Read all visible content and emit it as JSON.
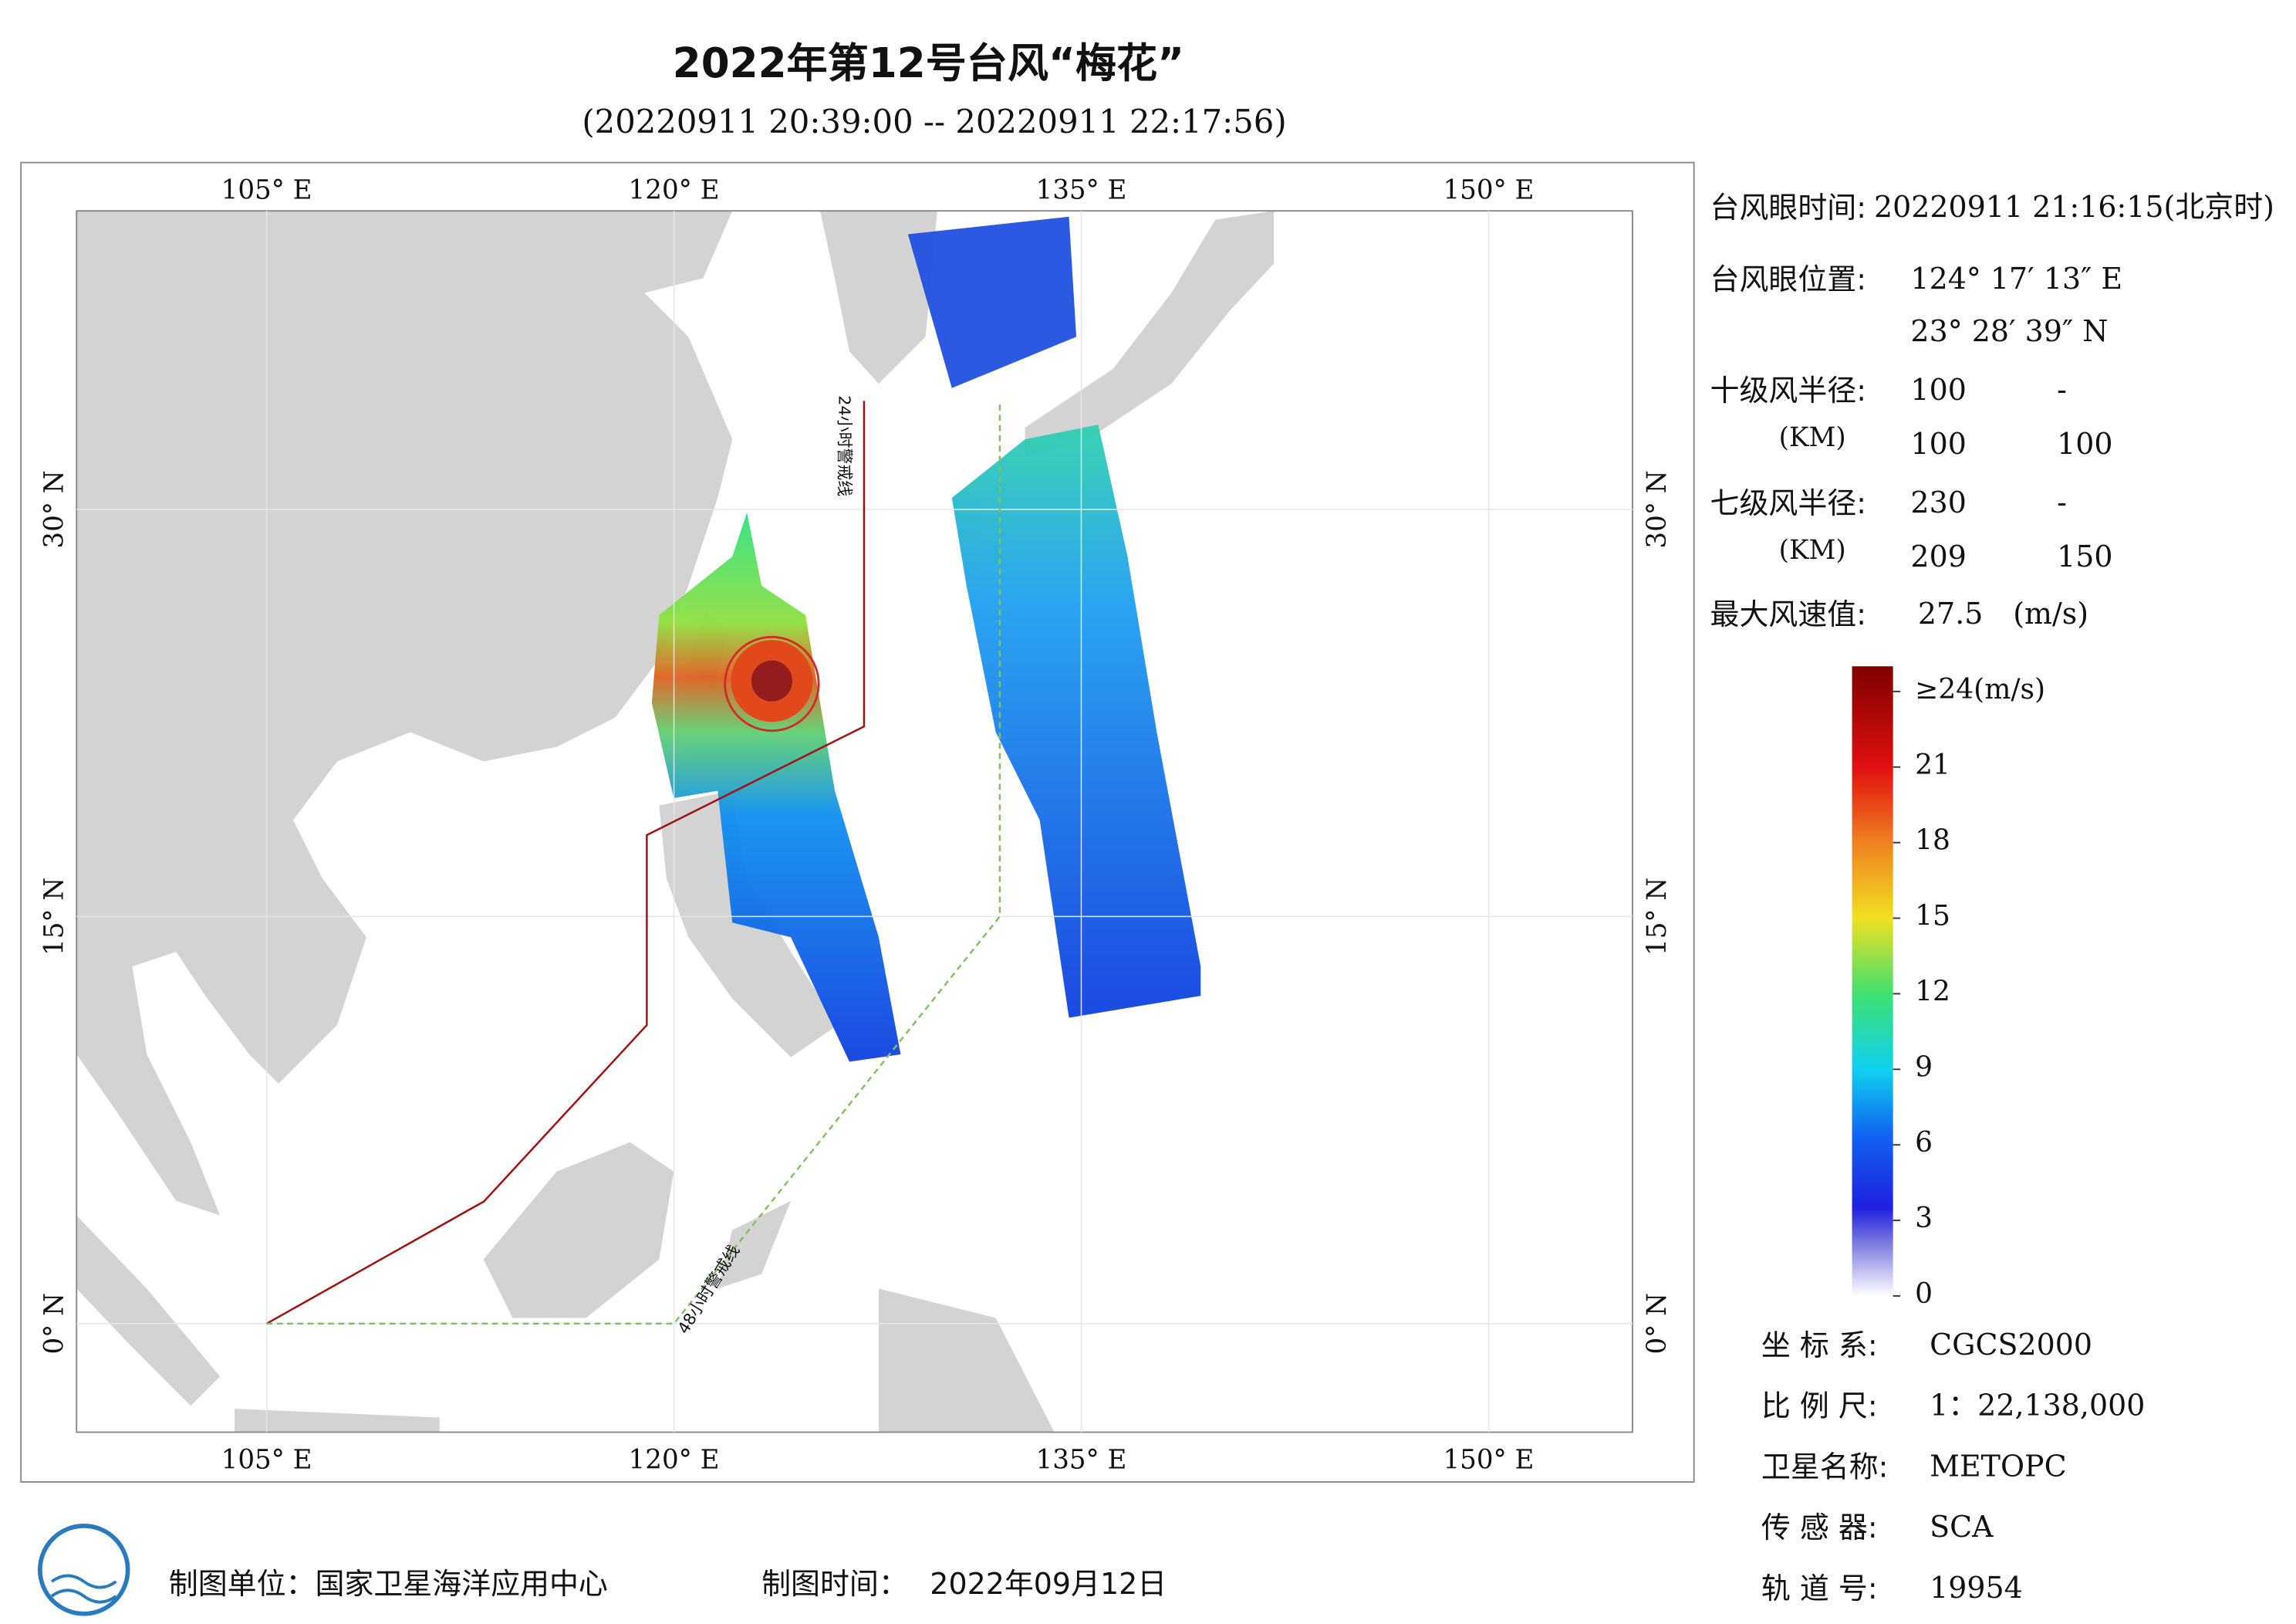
{
  "title": "2022年第12号台风“梅花”",
  "subtitle": "(20220911 20:39:00 -- 20220911 22:17:56)",
  "map": {
    "xlim": [
      98,
      155.3
    ],
    "ylim": [
      -4,
      41
    ],
    "lon_ticks": [
      {
        "value": 105,
        "label": "105° E"
      },
      {
        "value": 120,
        "label": "120° E"
      },
      {
        "value": 135,
        "label": "135° E"
      },
      {
        "value": 150,
        "label": "150° E"
      }
    ],
    "lat_ticks": [
      {
        "value": 0,
        "label": "0° N"
      },
      {
        "value": 15,
        "label": "15° N"
      },
      {
        "value": 30,
        "label": "30° N"
      }
    ],
    "warning_lines": [
      {
        "label": "24小时警戒线",
        "color": "#a01010",
        "lon": [
          127,
          127,
          119,
          119,
          113,
          105
        ],
        "lat": [
          34,
          22,
          18,
          11,
          4.5,
          0
        ]
      },
      {
        "label": "48小时警戒线",
        "color": "#7fc060",
        "lon": [
          105,
          120,
          132,
          132
        ],
        "lat": [
          0,
          0,
          15,
          34
        ]
      }
    ]
  },
  "info": {
    "eye_time": {
      "label": "台风眼时间:",
      "value": "20220911 21:16:15(北京时)"
    },
    "eye_position": {
      "label": "台风眼位置:",
      "lon": "124° 17′ 13″ E",
      "lat": "23° 28′ 39″ N"
    },
    "radius_10": {
      "label": "十级风半径:",
      "unit": "(KM)",
      "values": [
        100,
        "-",
        100,
        100
      ]
    },
    "radius_7": {
      "label": "七级风半径:",
      "unit": "(KM)",
      "values": [
        230,
        "-",
        209,
        150
      ]
    },
    "max_wind": {
      "label": "最大风速值:",
      "value": 27.5,
      "unit": "(m/s)"
    }
  },
  "colorbar": {
    "lim": [
      0,
      25
    ],
    "ticks": [
      0,
      3,
      6,
      9,
      12,
      15,
      18,
      21,
      {
        "value": 24,
        "label": "≥24(m/s)"
      }
    ]
  },
  "metadata": [
    {
      "label": "坐 标 系:",
      "value": "CGCS2000"
    },
    {
      "label": "比 例 尺:",
      "value": "1：22,138,000"
    },
    {
      "label": "卫星名称:",
      "value": "METOPC"
    },
    {
      "label": "传 感 器:",
      "value": "SCA"
    },
    {
      "label": "轨 道 号:",
      "value": 19954
    }
  ],
  "footer": {
    "unit_label": "制图单位：国家卫星海洋应用中心",
    "time_label": "制图时间：",
    "time_value": "2022年09月12日"
  }
}
